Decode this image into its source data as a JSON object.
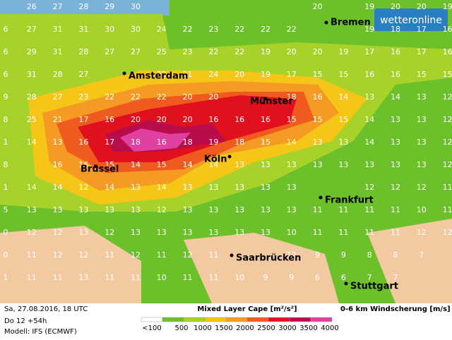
{
  "logo": "wetteronline",
  "cities": [
    "Bremen",
    "Amsterdam",
    "Münster",
    "Köln",
    "Brüssel",
    "Frankfurt",
    "Saarbrücken",
    "Stuttgart"
  ],
  "grid": {
    "rows": [
      [
        null,
        26,
        27,
        28,
        29,
        30,
        null,
        null,
        null,
        null,
        null,
        null,
        20,
        null,
        19,
        20,
        20,
        19
      ],
      [
        6,
        27,
        31,
        31,
        30,
        30,
        24,
        22,
        23,
        22,
        22,
        22,
        null,
        null,
        19,
        18,
        17,
        16
      ],
      [
        6,
        29,
        31,
        28,
        27,
        27,
        25,
        23,
        22,
        22,
        19,
        20,
        20,
        19,
        17,
        16,
        17,
        16
      ],
      [
        6,
        31,
        28,
        27,
        null,
        null,
        22,
        21,
        24,
        20,
        19,
        17,
        15,
        15,
        16,
        16,
        15,
        15
      ],
      [
        9,
        28,
        27,
        23,
        22,
        22,
        22,
        20,
        20,
        null,
        null,
        18,
        16,
        14,
        13,
        14,
        13,
        12
      ],
      [
        8,
        25,
        21,
        17,
        16,
        20,
        20,
        20,
        16,
        16,
        16,
        15,
        15,
        15,
        14,
        13,
        13,
        12
      ],
      [
        1,
        14,
        13,
        16,
        17,
        18,
        16,
        18,
        19,
        18,
        15,
        14,
        13,
        13,
        14,
        13,
        13,
        12
      ],
      [
        8,
        null,
        16,
        16,
        15,
        14,
        15,
        14,
        14,
        13,
        13,
        13,
        13,
        13,
        13,
        13,
        13,
        12
      ],
      [
        1,
        14,
        14,
        12,
        14,
        13,
        14,
        13,
        13,
        13,
        13,
        13,
        null,
        null,
        12,
        12,
        12,
        11
      ],
      [
        5,
        13,
        13,
        13,
        13,
        13,
        12,
        13,
        13,
        13,
        13,
        13,
        11,
        11,
        11,
        11,
        10,
        11
      ],
      [
        0,
        12,
        12,
        13,
        12,
        13,
        13,
        13,
        13,
        13,
        13,
        10,
        11,
        11,
        11,
        11,
        12,
        12
      ],
      [
        0,
        11,
        12,
        12,
        11,
        12,
        11,
        12,
        11,
        null,
        null,
        12,
        9,
        9,
        8,
        8,
        7,
        null
      ],
      [
        1,
        11,
        11,
        13,
        11,
        11,
        10,
        11,
        11,
        10,
        9,
        9,
        6,
        6,
        7,
        7,
        null,
        null
      ]
    ]
  },
  "footer": {
    "date": "Sa, 27.08.2016, 18 UTC",
    "run": "Do 12 +54h",
    "model": "Modell: IFS (ECMWF)",
    "shear_title": "0-6 km Windscherung [m/s]"
  },
  "legend": {
    "title": "Mixed Layer Cape [m²/s²]",
    "labels": [
      "<100",
      "500",
      "1000",
      "1500",
      "2000",
      "2500",
      "3000",
      "3500",
      "4000"
    ],
    "colors": [
      "#ffffff",
      "#6dc22a",
      "#a6d22a",
      "#f5c518",
      "#f59a23",
      "#ef5a1e",
      "#e0101e",
      "#b80d4a",
      "#e040a0"
    ]
  }
}
